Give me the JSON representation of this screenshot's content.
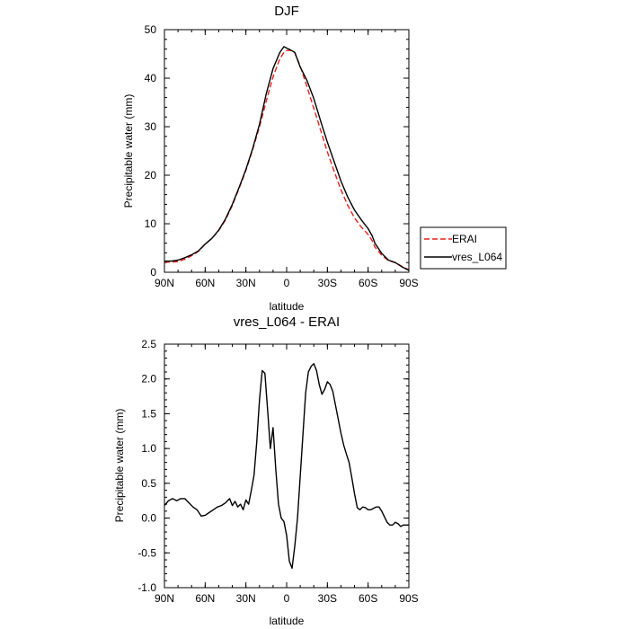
{
  "chart_data": [
    {
      "type": "line",
      "title": "DJF",
      "xlabel": "latitude",
      "ylabel": "Precipitable water (mm)",
      "xlim": [
        -90,
        90
      ],
      "ylim": [
        0,
        50
      ],
      "x_ticks": [
        -90,
        -60,
        -30,
        0,
        30,
        60,
        90
      ],
      "x_tick_labels": [
        "90N",
        "60N",
        "30N",
        "0",
        "30S",
        "60S",
        "90S"
      ],
      "y_ticks": [
        0,
        10,
        20,
        30,
        40,
        50
      ],
      "y_tick_labels": [
        "0",
        "10",
        "20",
        "30",
        "40",
        "50"
      ],
      "legend_position": "right",
      "series": [
        {
          "name": "ERAI",
          "color": "#e8201c",
          "dash": "dashed",
          "x": [
            -90,
            -85,
            -80,
            -75,
            -70,
            -65,
            -60,
            -55,
            -50,
            -45,
            -40,
            -35,
            -30,
            -25,
            -20,
            -15,
            -10,
            -5,
            -2,
            0,
            3,
            6,
            10,
            15,
            20,
            25,
            30,
            35,
            40,
            45,
            50,
            55,
            60,
            63,
            65,
            70,
            75,
            80,
            85,
            90
          ],
          "y": [
            2.1,
            2.1,
            2.2,
            2.7,
            3.4,
            4.3,
            5.8,
            7.0,
            8.6,
            10.8,
            13.8,
            17.3,
            21.0,
            25.3,
            30.0,
            35.3,
            40.3,
            44.0,
            45.3,
            45.7,
            45.7,
            45.3,
            42.5,
            38.2,
            33.8,
            29.3,
            24.8,
            20.8,
            17.0,
            13.8,
            11.2,
            9.3,
            7.8,
            6.5,
            5.2,
            3.5,
            2.4,
            2.0,
            1.2,
            0.5
          ]
        },
        {
          "name": "vres_L064",
          "color": "#000000",
          "dash": "solid",
          "x": [
            -90,
            -85,
            -80,
            -75,
            -70,
            -65,
            -60,
            -55,
            -50,
            -45,
            -40,
            -35,
            -30,
            -25,
            -20,
            -15,
            -10,
            -5,
            -2,
            0,
            3,
            6,
            10,
            15,
            20,
            25,
            30,
            35,
            40,
            45,
            50,
            55,
            60,
            63,
            65,
            70,
            75,
            80,
            85,
            90
          ],
          "y": [
            2.3,
            2.3,
            2.5,
            3.0,
            3.6,
            4.4,
            5.8,
            7.0,
            8.7,
            11.0,
            14.0,
            17.5,
            21.2,
            25.5,
            30.5,
            36.8,
            42.0,
            45.3,
            46.5,
            46.2,
            45.8,
            45.3,
            42.3,
            39.5,
            35.8,
            31.2,
            26.8,
            22.8,
            18.8,
            15.5,
            12.8,
            10.8,
            9.0,
            7.5,
            6.0,
            3.9,
            2.5,
            2.0,
            1.1,
            0.4
          ]
        }
      ]
    },
    {
      "type": "line",
      "title": "vres_L064 - ERAI",
      "xlabel": "latitude",
      "ylabel": "Precipitable water (mm)",
      "xlim": [
        -90,
        90
      ],
      "ylim": [
        -1.0,
        2.5
      ],
      "x_ticks": [
        -90,
        -60,
        -30,
        0,
        30,
        60,
        90
      ],
      "x_tick_labels": [
        "90N",
        "60N",
        "30N",
        "0",
        "30S",
        "60S",
        "90S"
      ],
      "y_ticks": [
        -1.0,
        -0.5,
        0.0,
        0.5,
        1.0,
        1.5,
        2.0,
        2.5
      ],
      "y_tick_labels": [
        "-1.0",
        "-0.5",
        "0.0",
        "0.5",
        "1.0",
        "1.5",
        "2.0",
        "2.5"
      ],
      "series": [
        {
          "name": "",
          "color": "#000000",
          "dash": "solid",
          "x": [
            -90,
            -87,
            -84,
            -81,
            -78,
            -75,
            -72,
            -69,
            -66,
            -63,
            -60,
            -57,
            -54,
            -51,
            -48,
            -45,
            -42,
            -40,
            -38,
            -36,
            -34,
            -32,
            -30,
            -28,
            -26,
            -24,
            -22,
            -20,
            -18,
            -16,
            -14,
            -12,
            -10,
            -8,
            -6,
            -4,
            -2,
            0,
            2,
            4,
            6,
            8,
            10,
            12,
            14,
            16,
            18,
            20,
            22,
            24,
            26,
            28,
            30,
            32,
            34,
            36,
            38,
            40,
            42,
            44,
            46,
            48,
            50,
            52,
            54,
            56,
            58,
            60,
            62,
            64,
            66,
            68,
            70,
            72,
            74,
            76,
            78,
            80,
            82,
            84,
            86,
            88,
            90
          ],
          "y": [
            0.18,
            0.25,
            0.28,
            0.25,
            0.28,
            0.28,
            0.22,
            0.16,
            0.12,
            0.03,
            0.04,
            0.08,
            0.12,
            0.16,
            0.18,
            0.22,
            0.28,
            0.18,
            0.24,
            0.16,
            0.2,
            0.12,
            0.26,
            0.2,
            0.4,
            0.62,
            1.1,
            1.7,
            2.12,
            2.08,
            1.55,
            1.0,
            1.3,
            0.7,
            0.2,
            0.0,
            -0.05,
            -0.25,
            -0.62,
            -0.72,
            -0.4,
            0.0,
            0.6,
            1.2,
            1.8,
            2.1,
            2.18,
            2.22,
            2.12,
            1.92,
            1.78,
            1.85,
            1.96,
            1.92,
            1.82,
            1.62,
            1.42,
            1.22,
            1.05,
            0.92,
            0.8,
            0.58,
            0.35,
            0.15,
            0.12,
            0.16,
            0.15,
            0.12,
            0.12,
            0.14,
            0.16,
            0.16,
            0.1,
            0.02,
            -0.06,
            -0.1,
            -0.1,
            -0.06,
            -0.08,
            -0.12,
            -0.1,
            -0.1,
            -0.1
          ]
        }
      ]
    }
  ]
}
